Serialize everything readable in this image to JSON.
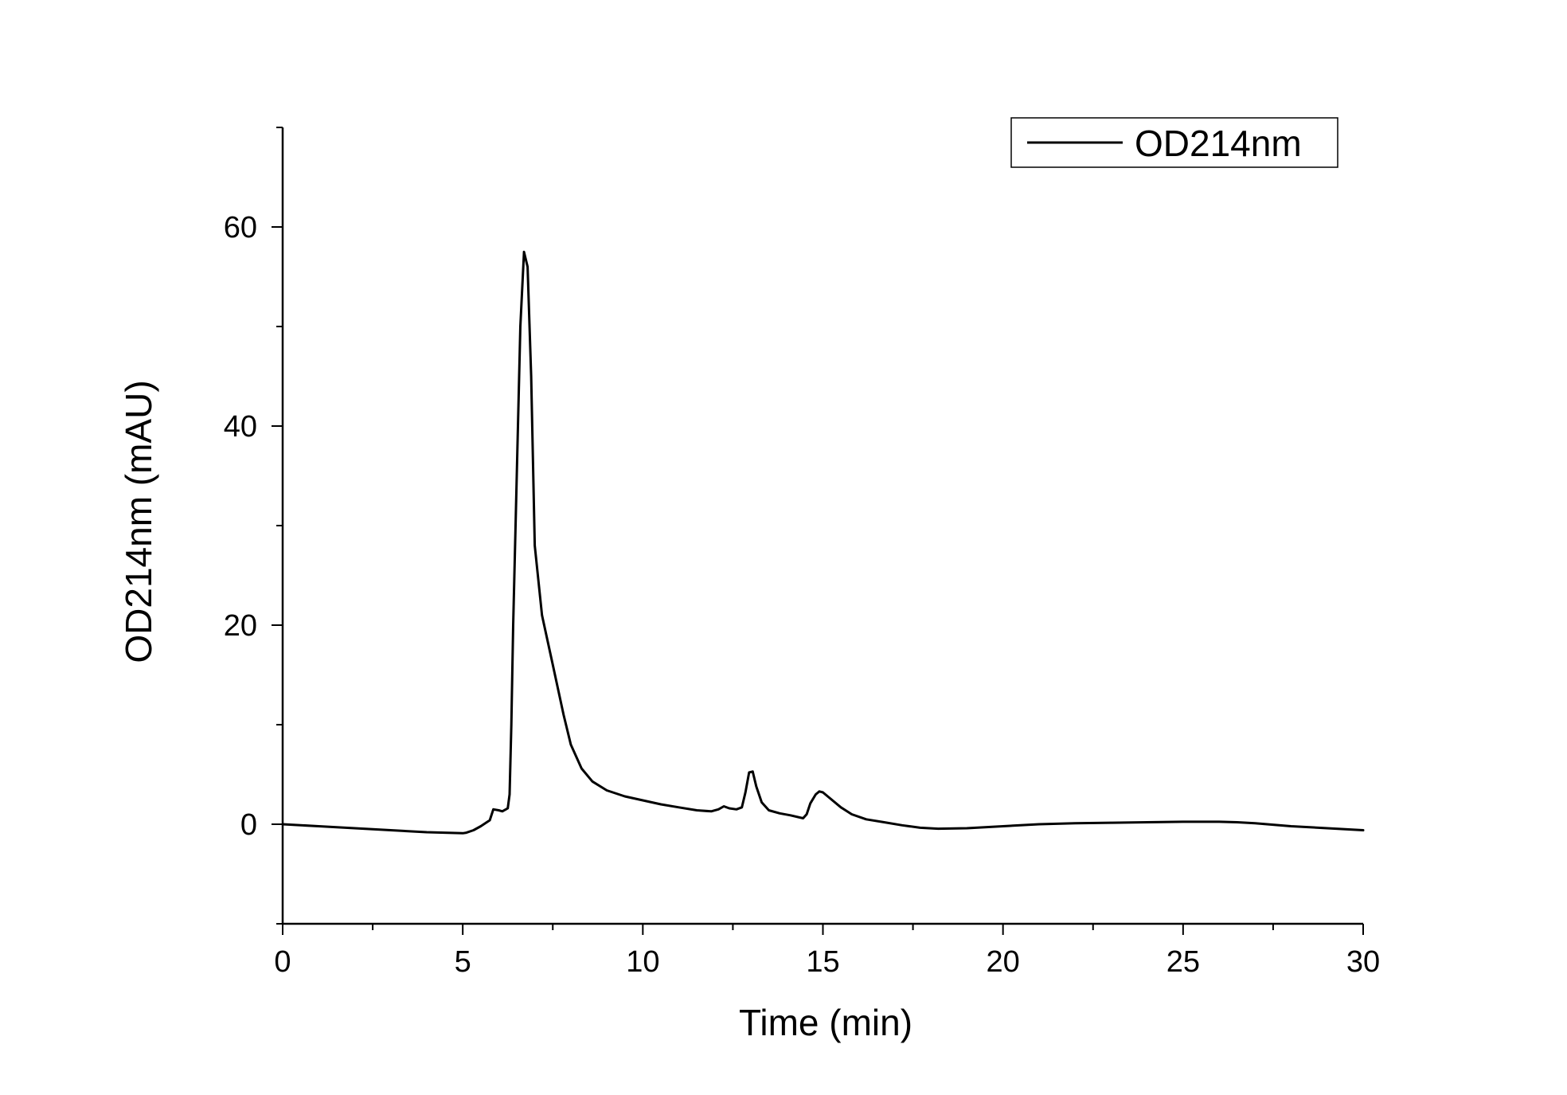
{
  "chart_data": {
    "type": "line",
    "title": "",
    "xlabel": "Time (min)",
    "ylabel": "OD214nm (mAU)",
    "xlim": [
      0,
      30
    ],
    "ylim": [
      -10,
      70
    ],
    "xticks": [
      0,
      5,
      10,
      15,
      20,
      25,
      30
    ],
    "yticks": [
      0,
      20,
      40,
      60
    ],
    "grid": false,
    "legend_position": "top-right",
    "colors": {
      "line": "#000000",
      "axis": "#000000",
      "background": "#ffffff"
    },
    "series": [
      {
        "name": "OD214nm",
        "x": [
          0,
          1,
          2,
          3,
          4,
          4.5,
          5,
          5.1,
          5.3,
          5.5,
          5.75,
          5.85,
          6.0,
          6.1,
          6.25,
          6.3,
          6.35,
          6.4,
          6.5,
          6.6,
          6.7,
          6.8,
          6.9,
          7.0,
          7.2,
          7.5,
          7.8,
          8.0,
          8.3,
          8.6,
          9.0,
          9.5,
          10,
          10.5,
          11,
          11.5,
          11.9,
          12.1,
          12.25,
          12.4,
          12.6,
          12.75,
          12.85,
          12.95,
          13.05,
          13.15,
          13.3,
          13.5,
          13.8,
          14.1,
          14.45,
          14.55,
          14.65,
          14.8,
          14.9,
          15.0,
          15.2,
          15.5,
          15.8,
          16.2,
          16.7,
          17.2,
          17.7,
          18.2,
          19,
          20,
          21,
          22,
          23,
          24,
          25,
          26,
          26.5,
          27,
          28,
          29,
          30
        ],
        "y": [
          0,
          -0.2,
          -0.4,
          -0.6,
          -0.8,
          -0.85,
          -0.9,
          -0.85,
          -0.6,
          -0.2,
          0.4,
          1.5,
          1.4,
          1.3,
          1.6,
          3,
          10,
          20,
          35,
          50,
          57.5,
          56,
          45,
          28,
          21,
          16,
          11,
          8,
          5.6,
          4.3,
          3.4,
          2.8,
          2.4,
          2.0,
          1.7,
          1.4,
          1.3,
          1.5,
          1.8,
          1.6,
          1.5,
          1.7,
          3.2,
          5.2,
          5.3,
          3.8,
          2.2,
          1.4,
          1.1,
          0.9,
          0.6,
          1.0,
          2.1,
          3.0,
          3.3,
          3.2,
          2.6,
          1.7,
          1.0,
          0.5,
          0.2,
          -0.1,
          -0.35,
          -0.45,
          -0.4,
          -0.2,
          0,
          0.1,
          0.15,
          0.2,
          0.25,
          0.25,
          0.2,
          0.1,
          -0.2,
          -0.4,
          -0.6
        ]
      }
    ]
  }
}
